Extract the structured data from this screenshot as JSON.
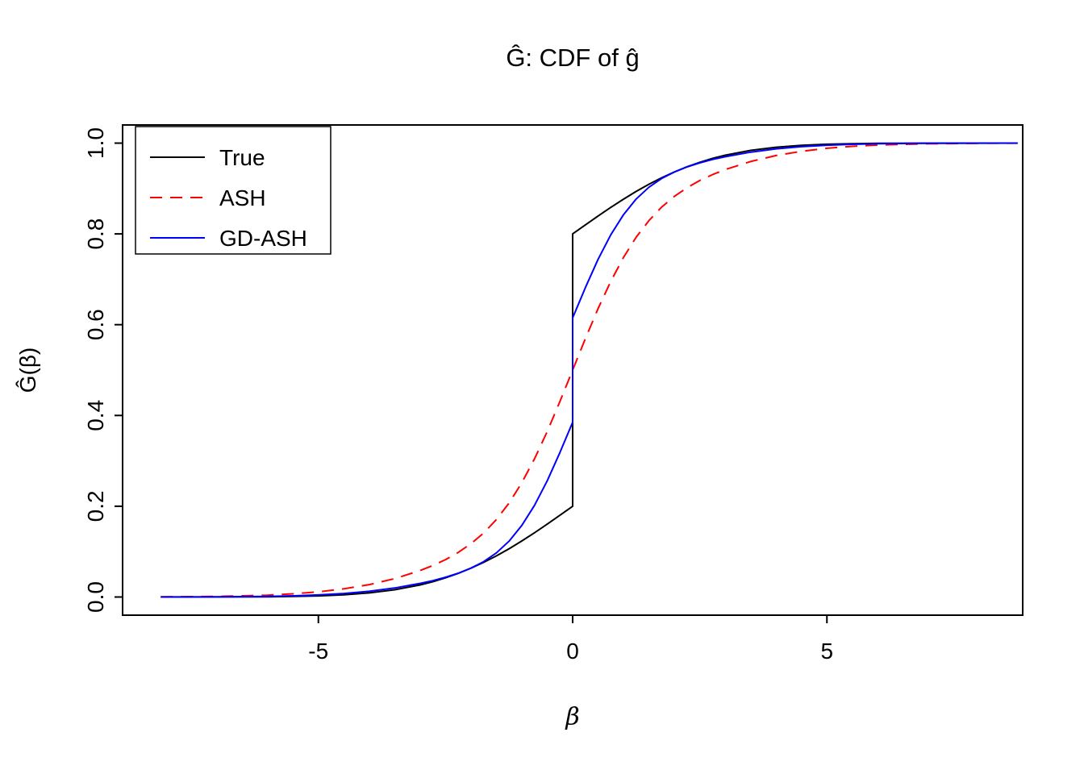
{
  "chart_data": {
    "type": "line",
    "title": "Ĝ: CDF of ĝ",
    "xlabel": "β",
    "ylabel": "Ĝ(β)",
    "xlim": [
      -8.85,
      8.85
    ],
    "ylim": [
      -0.04,
      1.04
    ],
    "x_ticks": [
      -5,
      0,
      5
    ],
    "x_tick_labels": [
      "-5",
      "0",
      "5"
    ],
    "y_ticks": [
      0.0,
      0.2,
      0.4,
      0.6,
      0.8,
      1.0
    ],
    "y_tick_labels": [
      "0.0",
      "0.2",
      "0.4",
      "0.6",
      "0.8",
      "1.0"
    ],
    "grid": false,
    "legend": {
      "position": "top-left",
      "entries": [
        {
          "label": "True",
          "color": "#000000",
          "style": "solid"
        },
        {
          "label": "ASH",
          "color": "#ff0000",
          "style": "dashed"
        },
        {
          "label": "GD-ASH",
          "color": "#0000ff",
          "style": "solid"
        }
      ]
    },
    "series": [
      {
        "name": "True",
        "color": "#000000",
        "style": "solid",
        "points": [
          [
            -8.1,
            0.0
          ],
          [
            -7,
            0.0001
          ],
          [
            -6,
            0.0005
          ],
          [
            -5.5,
            0.0012
          ],
          [
            -5,
            0.0025
          ],
          [
            -4.5,
            0.0049
          ],
          [
            -4,
            0.0091
          ],
          [
            -3.5,
            0.016
          ],
          [
            -3,
            0.0267
          ],
          [
            -2.75,
            0.0338
          ],
          [
            -2.5,
            0.0422
          ],
          [
            -2.25,
            0.0521
          ],
          [
            -2,
            0.0635
          ],
          [
            -1.75,
            0.0763
          ],
          [
            -1.5,
            0.0906
          ],
          [
            -1.25,
            0.1064
          ],
          [
            -1,
            0.1234
          ],
          [
            -0.75,
            0.1415
          ],
          [
            -0.5,
            0.1605
          ],
          [
            -0.25,
            0.1801
          ],
          [
            0,
            0.2
          ],
          [
            0,
            0.8
          ],
          [
            0.25,
            0.8199
          ],
          [
            0.5,
            0.8395
          ],
          [
            0.75,
            0.8585
          ],
          [
            1,
            0.8766
          ],
          [
            1.25,
            0.8936
          ],
          [
            1.5,
            0.9094
          ],
          [
            1.75,
            0.9237
          ],
          [
            2,
            0.9365
          ],
          [
            2.25,
            0.9479
          ],
          [
            2.5,
            0.9578
          ],
          [
            2.75,
            0.9662
          ],
          [
            3,
            0.9733
          ],
          [
            3.5,
            0.984
          ],
          [
            4,
            0.9909
          ],
          [
            4.5,
            0.9951
          ],
          [
            5,
            0.9975
          ],
          [
            5.5,
            0.9988
          ],
          [
            6,
            0.9995
          ],
          [
            7,
            0.9999
          ],
          [
            8,
            1.0
          ],
          [
            8.75,
            1.0
          ]
        ]
      },
      {
        "name": "ASH",
        "color": "#ff0000",
        "style": "dashed",
        "points": [
          [
            -8.1,
            0.0003
          ],
          [
            -7,
            0.0013
          ],
          [
            -6,
            0.0041
          ],
          [
            -5.5,
            0.007
          ],
          [
            -5,
            0.0114
          ],
          [
            -4.5,
            0.018
          ],
          [
            -4,
            0.0274
          ],
          [
            -3.5,
            0.0405
          ],
          [
            -3,
            0.0582
          ],
          [
            -2.75,
            0.0694
          ],
          [
            -2.5,
            0.0824
          ],
          [
            -2.25,
            0.0982
          ],
          [
            -2,
            0.1173
          ],
          [
            -1.75,
            0.141
          ],
          [
            -1.5,
            0.1706
          ],
          [
            -1.25,
            0.2071
          ],
          [
            -1,
            0.2516
          ],
          [
            -0.75,
            0.3044
          ],
          [
            -0.5,
            0.3646
          ],
          [
            -0.25,
            0.4308
          ],
          [
            0,
            0.5
          ],
          [
            0.25,
            0.5692
          ],
          [
            0.5,
            0.6354
          ],
          [
            0.75,
            0.6956
          ],
          [
            1,
            0.7484
          ],
          [
            1.25,
            0.7929
          ],
          [
            1.5,
            0.8294
          ],
          [
            1.75,
            0.859
          ],
          [
            2,
            0.8827
          ],
          [
            2.25,
            0.9018
          ],
          [
            2.5,
            0.9176
          ],
          [
            2.75,
            0.9306
          ],
          [
            3,
            0.9418
          ],
          [
            3.5,
            0.9595
          ],
          [
            4,
            0.9726
          ],
          [
            4.5,
            0.982
          ],
          [
            5,
            0.9886
          ],
          [
            5.5,
            0.993
          ],
          [
            6,
            0.9959
          ],
          [
            7,
            0.9987
          ],
          [
            8,
            0.9997
          ],
          [
            8.75,
            0.9999
          ]
        ]
      },
      {
        "name": "GD-ASH",
        "color": "#0000ff",
        "style": "solid",
        "points": [
          [
            -8.1,
            0.0001
          ],
          [
            -7,
            0.0004
          ],
          [
            -6,
            0.0014
          ],
          [
            -5.5,
            0.0026
          ],
          [
            -5,
            0.0046
          ],
          [
            -4.5,
            0.0078
          ],
          [
            -4,
            0.0126
          ],
          [
            -3.5,
            0.0198
          ],
          [
            -3,
            0.0299
          ],
          [
            -2.75,
            0.036
          ],
          [
            -2.5,
            0.0434
          ],
          [
            -2.25,
            0.0524
          ],
          [
            -2,
            0.0635
          ],
          [
            -1.75,
            0.0779
          ],
          [
            -1.5,
            0.0972
          ],
          [
            -1.25,
            0.1231
          ],
          [
            -1,
            0.1575
          ],
          [
            -0.75,
            0.2019
          ],
          [
            -0.5,
            0.2561
          ],
          [
            -0.25,
            0.3182
          ],
          [
            0,
            0.385
          ],
          [
            0,
            0.615
          ],
          [
            0.25,
            0.6818
          ],
          [
            0.5,
            0.7439
          ],
          [
            0.75,
            0.7981
          ],
          [
            1,
            0.8425
          ],
          [
            1.25,
            0.8769
          ],
          [
            1.5,
            0.9028
          ],
          [
            1.75,
            0.9221
          ],
          [
            2,
            0.9365
          ],
          [
            2.25,
            0.9476
          ],
          [
            2.5,
            0.9566
          ],
          [
            2.75,
            0.964
          ],
          [
            3,
            0.9701
          ],
          [
            3.5,
            0.9802
          ],
          [
            4,
            0.9874
          ],
          [
            4.5,
            0.9922
          ],
          [
            5,
            0.9954
          ],
          [
            5.5,
            0.9974
          ],
          [
            6,
            0.9986
          ],
          [
            7,
            0.9996
          ],
          [
            8,
            0.9999
          ],
          [
            8.75,
            1.0
          ]
        ]
      }
    ]
  }
}
